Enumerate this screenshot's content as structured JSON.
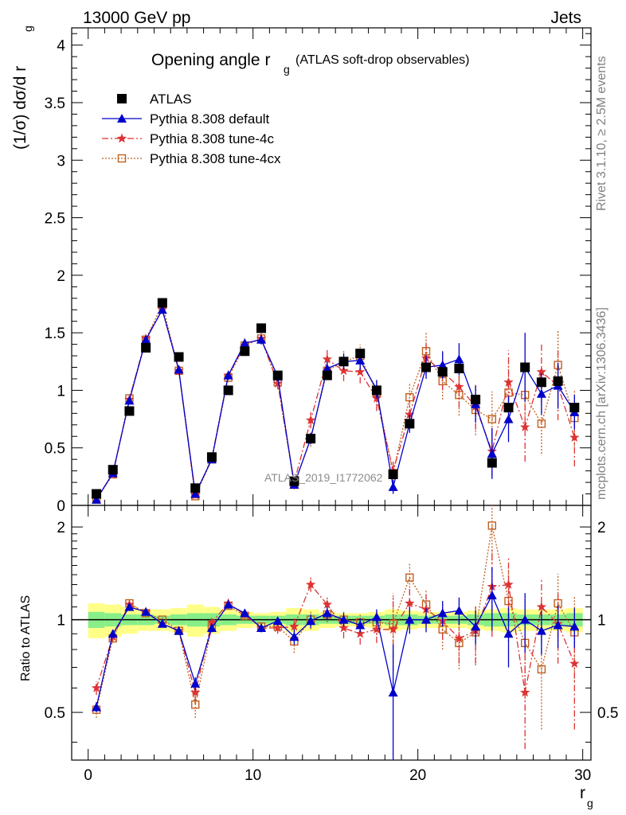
{
  "header": {
    "left": "13000 GeV pp",
    "right": "Jets",
    "side_top": "Rivet 3.1.10, ≥ 2.5M events",
    "side_bottom": "mcplots.cern.ch [arXiv:1306.3436]"
  },
  "chart_data": [
    {
      "type": "scatter",
      "title_main": "Opening angle r",
      "title_sub": "g",
      "title_rest": "(ATLAS soft-drop observables)",
      "ylabel": "(1/σ) dσ/d r",
      "ylabel_sub": "g",
      "watermark": "ATLAS_2019_I1772062",
      "xlim": [
        -1,
        30.5
      ],
      "ylim": [
        0,
        4.15
      ],
      "yticks": [
        0,
        0.5,
        1,
        1.5,
        2,
        2.5,
        3,
        3.5,
        4
      ],
      "ytick_labels": [
        "0",
        "0.5",
        "1",
        "1.5",
        "2",
        "2.5",
        "3",
        "3.5",
        "4"
      ],
      "x": [
        0.5,
        1.5,
        2.5,
        3.5,
        4.5,
        5.5,
        6.5,
        7.5,
        8.5,
        9.5,
        10.5,
        11.5,
        12.5,
        13.5,
        14.5,
        15.5,
        16.5,
        17.5,
        18.5,
        19.5,
        20.5,
        21.5,
        22.5,
        23.5,
        24.5,
        25.5,
        26.5,
        27.5,
        28.5,
        29.5
      ],
      "series": [
        {
          "name": "ATLAS",
          "color": "#000000",
          "marker": "square-filled",
          "values": [
            0.1,
            0.31,
            0.82,
            1.37,
            1.76,
            1.29,
            0.15,
            0.42,
            1.0,
            1.34,
            1.54,
            1.13,
            0.21,
            0.58,
            1.13,
            1.25,
            1.32,
            1.0,
            0.27,
            0.71,
            1.2,
            1.16,
            1.19,
            0.92,
            0.37,
            0.85,
            1.2,
            1.07,
            1.08,
            0.85
          ],
          "errors": [
            0,
            0,
            0,
            0,
            0,
            0,
            0,
            0,
            0,
            0,
            0,
            0,
            0,
            0,
            0,
            0,
            0,
            0,
            0,
            0,
            0,
            0,
            0,
            0,
            0,
            0,
            0,
            0,
            0,
            0
          ]
        },
        {
          "name": "Pythia 8.308 default",
          "color": "#0000cc",
          "marker": "triangle-filled",
          "line": "solid",
          "values": [
            0.05,
            0.28,
            0.91,
            1.44,
            1.7,
            1.18,
            0.1,
            0.4,
            1.13,
            1.41,
            1.44,
            1.12,
            0.18,
            0.58,
            1.19,
            1.25,
            1.26,
            1.01,
            0.16,
            0.71,
            1.2,
            1.22,
            1.27,
            0.88,
            0.45,
            0.75,
            1.2,
            0.97,
            1.04,
            0.81
          ],
          "errors": [
            0.01,
            0.02,
            0.03,
            0.03,
            0.03,
            0.03,
            0.02,
            0.03,
            0.04,
            0.04,
            0.04,
            0.04,
            0.03,
            0.05,
            0.06,
            0.07,
            0.08,
            0.08,
            0.06,
            0.08,
            0.1,
            0.12,
            0.14,
            0.16,
            0.22,
            0.2,
            0.3,
            0.18,
            0.2,
            0.15
          ]
        },
        {
          "name": "Pythia 8.308 tune-4c",
          "color": "#dd3333",
          "marker": "star",
          "line": "dashdot",
          "values": [
            0.06,
            0.27,
            0.92,
            1.45,
            1.7,
            1.17,
            0.09,
            0.41,
            1.13,
            1.39,
            1.45,
            1.06,
            0.2,
            0.74,
            1.27,
            1.17,
            1.16,
            0.93,
            0.3,
            0.79,
            1.28,
            1.16,
            1.03,
            0.86,
            0.47,
            1.07,
            0.68,
            1.16,
            1.04,
            0.59
          ],
          "errors": [
            0.01,
            0.02,
            0.03,
            0.03,
            0.03,
            0.03,
            0.02,
            0.03,
            0.04,
            0.05,
            0.05,
            0.05,
            0.04,
            0.07,
            0.08,
            0.09,
            0.1,
            0.11,
            0.08,
            0.12,
            0.15,
            0.16,
            0.18,
            0.2,
            0.22,
            0.28,
            0.3,
            0.26,
            0.3,
            0.25
          ]
        },
        {
          "name": "Pythia 8.308 tune-4cx",
          "color": "#c06020",
          "marker": "square-open",
          "line": "dotted",
          "values": [
            0.05,
            0.27,
            0.93,
            1.44,
            1.75,
            1.17,
            0.08,
            0.4,
            1.11,
            1.39,
            1.45,
            1.07,
            0.18,
            0.58,
            1.17,
            1.25,
            1.3,
            0.98,
            0.28,
            0.94,
            1.34,
            1.08,
            0.96,
            0.83,
            0.75,
            0.98,
            0.96,
            0.71,
            1.22,
            0.76
          ],
          "errors": [
            0.01,
            0.02,
            0.03,
            0.03,
            0.03,
            0.03,
            0.02,
            0.03,
            0.04,
            0.05,
            0.05,
            0.05,
            0.04,
            0.07,
            0.08,
            0.09,
            0.1,
            0.11,
            0.08,
            0.12,
            0.16,
            0.16,
            0.18,
            0.22,
            0.24,
            0.28,
            0.3,
            0.26,
            0.3,
            0.25
          ]
        }
      ],
      "legend_position": "top-left"
    },
    {
      "type": "scatter",
      "ylabel": "Ratio to ATLAS",
      "xlabel": "r",
      "xlabel_sub": "g",
      "xlim": [
        -1,
        30.5
      ],
      "ylim": [
        0.35,
        2.35
      ],
      "xticks": [
        0,
        10,
        20,
        30
      ],
      "xtick_labels": [
        "0",
        "10",
        "20",
        "30"
      ],
      "yticks": [
        0.5,
        1,
        2
      ],
      "ytick_labels": [
        "0.5",
        "1",
        "2"
      ],
      "reference_line": 1,
      "band_inner": [
        0.06,
        0.05,
        0.04,
        0.04,
        0.03,
        0.04,
        0.05,
        0.05,
        0.04,
        0.03,
        0.03,
        0.03,
        0.04,
        0.04,
        0.03,
        0.03,
        0.03,
        0.03,
        0.04,
        0.04,
        0.03,
        0.03,
        0.03,
        0.04,
        0.05,
        0.05,
        0.04,
        0.04,
        0.04,
        0.05
      ],
      "band_outer": [
        0.13,
        0.12,
        0.1,
        0.08,
        0.08,
        0.09,
        0.12,
        0.1,
        0.08,
        0.06,
        0.05,
        0.06,
        0.09,
        0.08,
        0.06,
        0.05,
        0.05,
        0.06,
        0.08,
        0.07,
        0.06,
        0.06,
        0.06,
        0.07,
        0.08,
        0.09,
        0.08,
        0.08,
        0.08,
        0.09
      ],
      "series": [
        {
          "name": "Pythia 8.308 default",
          "color": "#0000cc",
          "marker": "triangle-filled",
          "line": "solid",
          "values": [
            0.52,
            0.9,
            1.1,
            1.06,
            0.97,
            0.92,
            0.62,
            0.94,
            1.12,
            1.05,
            0.94,
            0.99,
            0.88,
            0.99,
            1.05,
            1.0,
            0.96,
            1.02,
            0.58,
            1.0,
            1.0,
            1.05,
            1.07,
            0.95,
            1.2,
            0.9,
            1.0,
            0.92,
            0.96,
            0.95
          ],
          "errors": [
            0.02,
            0.02,
            0.02,
            0.02,
            0.02,
            0.02,
            0.03,
            0.03,
            0.03,
            0.03,
            0.03,
            0.03,
            0.05,
            0.05,
            0.05,
            0.05,
            0.05,
            0.06,
            0.25,
            0.1,
            0.09,
            0.1,
            0.11,
            0.12,
            0.28,
            0.2,
            0.22,
            0.15,
            0.15,
            0.14
          ]
        },
        {
          "name": "Pythia 8.308 tune-4c",
          "color": "#dd3333",
          "marker": "star",
          "line": "dashdot",
          "values": [
            0.6,
            0.88,
            1.12,
            1.06,
            0.97,
            0.92,
            0.58,
            0.98,
            1.13,
            1.04,
            0.94,
            0.94,
            0.95,
            1.3,
            1.12,
            0.94,
            0.9,
            0.93,
            0.93,
            1.13,
            1.08,
            0.99,
            0.87,
            0.92,
            1.28,
            1.3,
            0.58,
            1.1,
            0.97,
            0.72
          ],
          "errors": [
            0.03,
            0.03,
            0.03,
            0.02,
            0.02,
            0.02,
            0.04,
            0.03,
            0.03,
            0.03,
            0.03,
            0.04,
            0.06,
            0.07,
            0.06,
            0.07,
            0.07,
            0.09,
            0.25,
            0.14,
            0.12,
            0.13,
            0.15,
            0.2,
            0.4,
            0.3,
            0.2,
            0.25,
            0.25,
            0.28
          ]
        },
        {
          "name": "Pythia 8.308 tune-4cx",
          "color": "#c06020",
          "marker": "square-open",
          "line": "dotted",
          "values": [
            0.51,
            0.87,
            1.13,
            1.05,
            1.0,
            0.92,
            0.53,
            0.95,
            1.11,
            1.03,
            0.95,
            0.95,
            0.85,
            1.0,
            1.04,
            1.0,
            0.98,
            0.98,
            0.97,
            1.37,
            1.12,
            0.93,
            0.84,
            0.91,
            2.02,
            1.15,
            0.84,
            0.69,
            1.13,
            0.91
          ],
          "errors": [
            0.03,
            0.03,
            0.03,
            0.02,
            0.02,
            0.02,
            0.05,
            0.03,
            0.03,
            0.03,
            0.03,
            0.04,
            0.07,
            0.07,
            0.06,
            0.07,
            0.07,
            0.09,
            0.25,
            0.16,
            0.13,
            0.13,
            0.15,
            0.2,
            0.5,
            0.3,
            0.3,
            0.25,
            0.28,
            0.28
          ]
        }
      ]
    }
  ]
}
